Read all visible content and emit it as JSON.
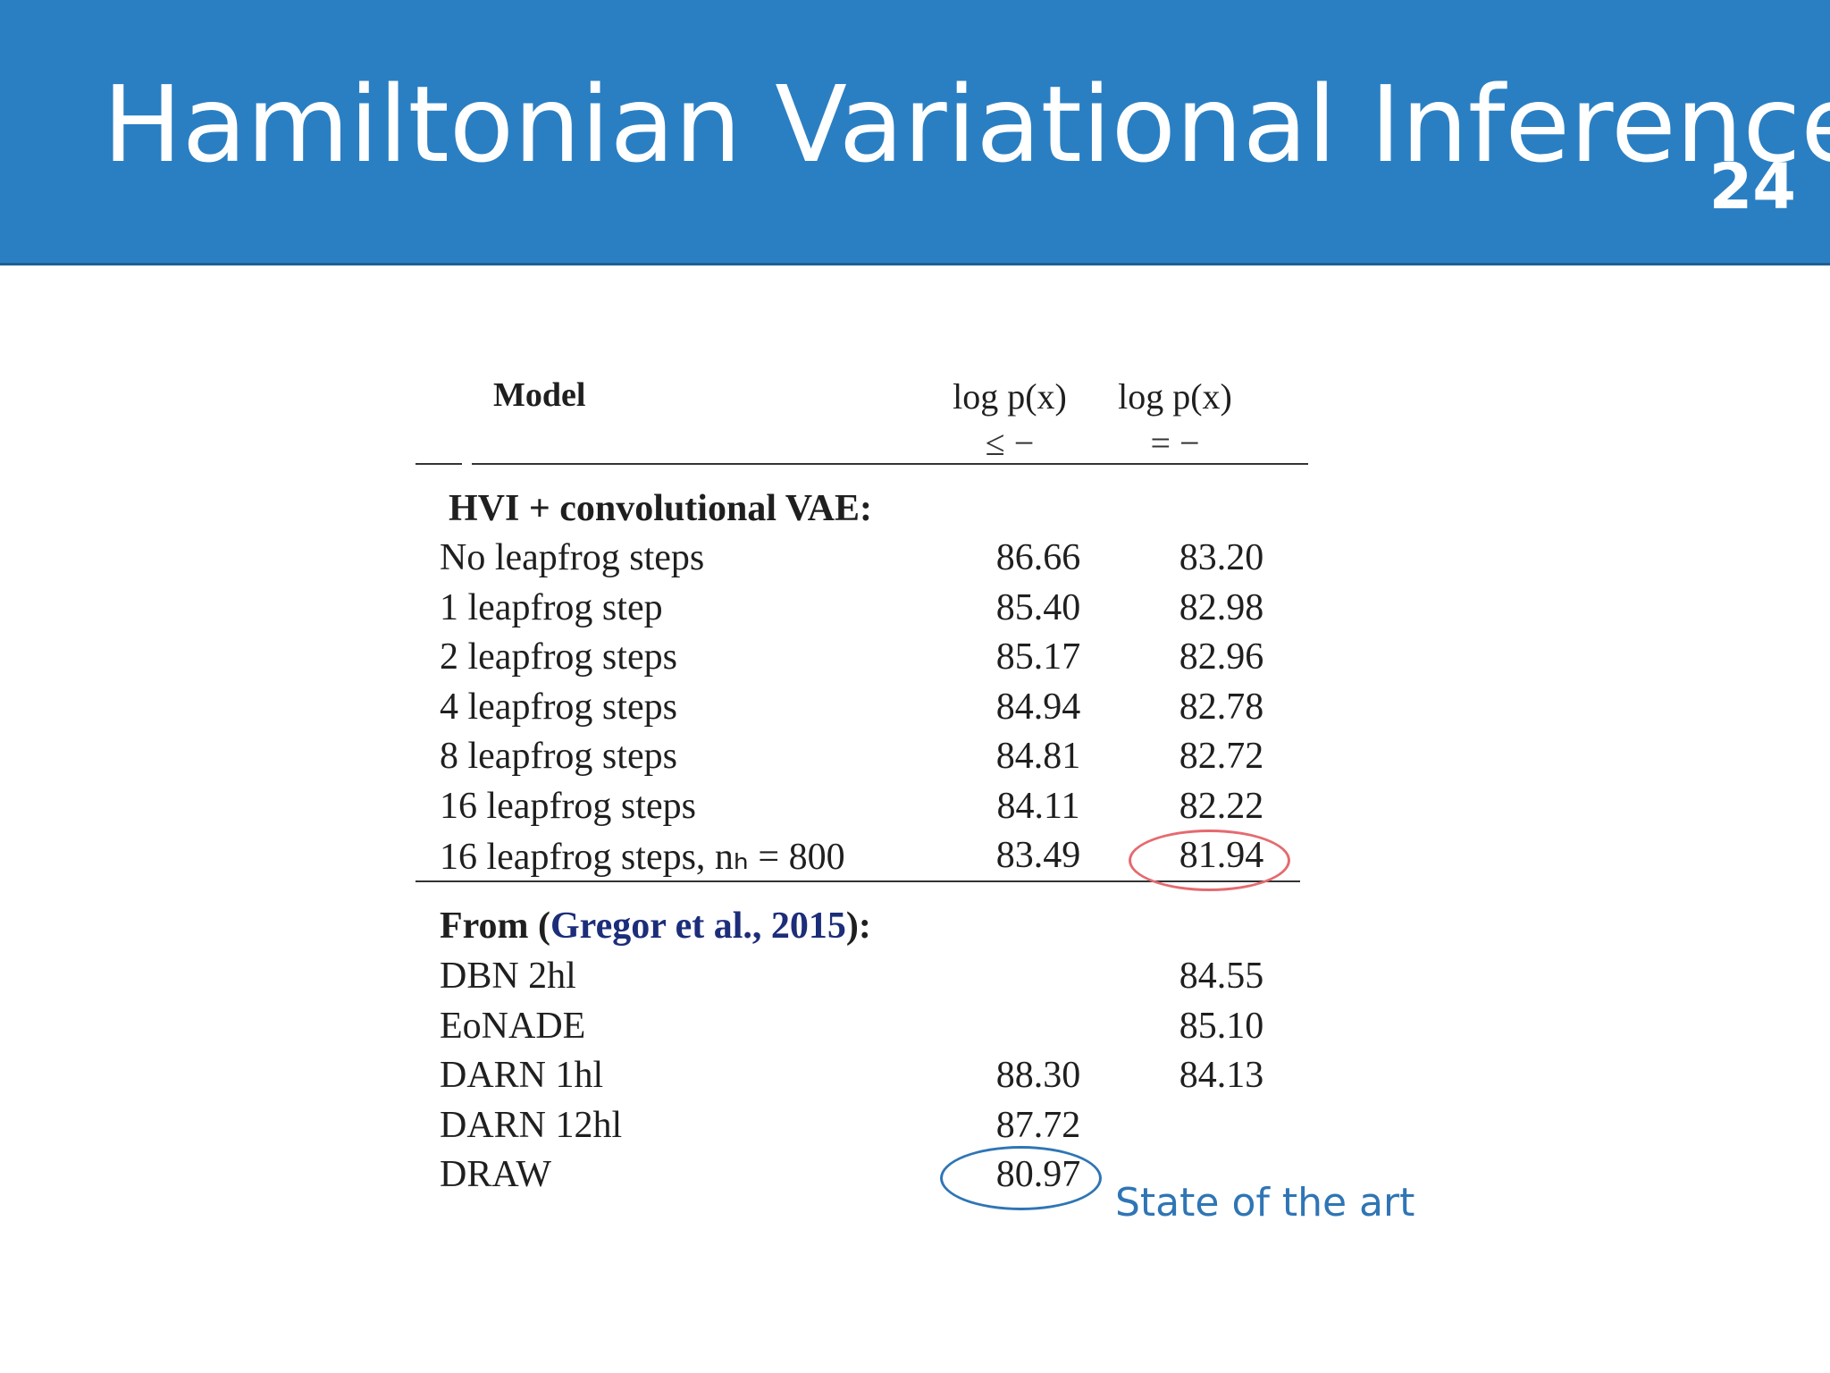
{
  "slide": {
    "title": "Hamiltonian Variational Inference",
    "number": "24"
  },
  "table": {
    "headers": {
      "model": "Model",
      "col1_line1": "log p(x)",
      "col1_line2": "≤ −",
      "col2_line1": "log p(x)",
      "col2_line2": "= −"
    },
    "section1": {
      "title": "HVI + convolutional VAE:",
      "rows": [
        {
          "name": "No leapfrog steps",
          "v1": "86.66",
          "v2": "83.20"
        },
        {
          "name": "1 leapfrog step",
          "v1": "85.40",
          "v2": "82.98"
        },
        {
          "name": "2 leapfrog steps",
          "v1": "85.17",
          "v2": "82.96"
        },
        {
          "name": "4 leapfrog steps",
          "v1": "84.94",
          "v2": "82.78"
        },
        {
          "name": "8 leapfrog steps",
          "v1": "84.81",
          "v2": "82.72"
        },
        {
          "name": "16 leapfrog steps",
          "v1": "84.11",
          "v2": "82.22"
        },
        {
          "name": "16 leapfrog steps, nₕ = 800",
          "v1": "83.49",
          "v2": "81.94"
        }
      ]
    },
    "section2": {
      "title_prefix": "From (",
      "citation": "Gregor et al., 2015",
      "title_suffix": "):",
      "rows": [
        {
          "name": "DBN 2hl",
          "v1": "",
          "v2": "84.55"
        },
        {
          "name": "EoNADE",
          "v1": "",
          "v2": "85.10"
        },
        {
          "name": "DARN 1hl",
          "v1": "88.30",
          "v2": "84.13"
        },
        {
          "name": "DARN 12hl",
          "v1": "87.72",
          "v2": ""
        },
        {
          "name": "DRAW",
          "v1": "80.97",
          "v2": ""
        }
      ]
    }
  },
  "annotation": {
    "text": "State of the art",
    "color": "#2f75b5",
    "highlight_color": "#e56a6f"
  }
}
